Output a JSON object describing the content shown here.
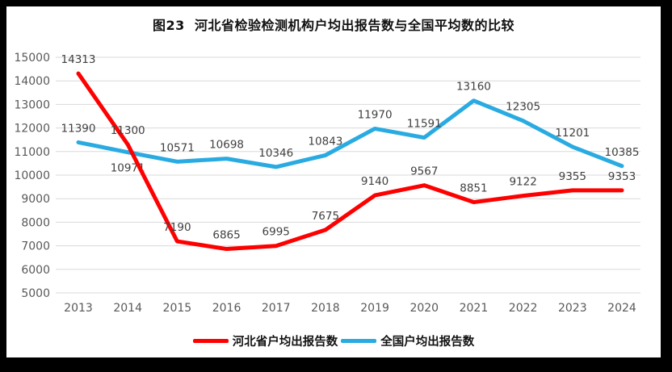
{
  "title": "图23  河北省检验检测机构户均出报告数与全国平均数的比较",
  "frame": {
    "border_color": "#000000",
    "chart_background": "#ffffff"
  },
  "chart_data": {
    "type": "line",
    "title": "图23  河北省检验检测机构户均出报告数与全国平均数的比较",
    "categories": [
      "2013",
      "2014",
      "2015",
      "2016",
      "2017",
      "2018",
      "2019",
      "2020",
      "2021",
      "2022",
      "2023",
      "2024"
    ],
    "series": [
      {
        "name": "河北省户均出报告数",
        "color": "#FE0000",
        "values": [
          14313,
          11300,
          7190,
          6865,
          6995,
          7675,
          9140,
          9567,
          8851,
          9122,
          9355,
          9353
        ]
      },
      {
        "name": "全国户均出报告数",
        "color": "#29ABE2",
        "values": [
          11390,
          10971,
          10571,
          10698,
          10346,
          10843,
          11970,
          11591,
          13160,
          12305,
          11201,
          10385
        ]
      }
    ],
    "ylim": [
      5000,
      15000
    ],
    "yticks": [
      5000,
      6000,
      7000,
      8000,
      9000,
      10000,
      11000,
      12000,
      13000,
      14000,
      15000
    ],
    "xlabel": "",
    "ylabel": "",
    "grid": "horizontal",
    "gridline_color": "#D9D9D9",
    "axis_tick_color": "#595959",
    "data_label_color": "#404040",
    "data_labels_visible": true,
    "legend_position": "bottom",
    "label_overrides": [
      {
        "series": 1,
        "index": 1,
        "position": "below"
      }
    ]
  }
}
